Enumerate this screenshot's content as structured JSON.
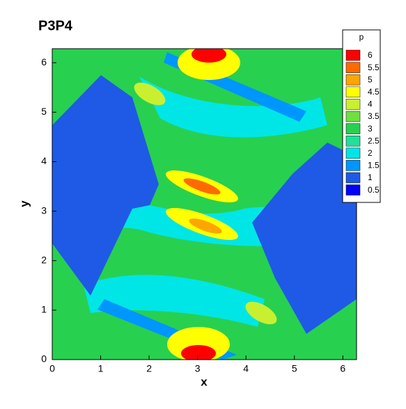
{
  "chart_data": {
    "type": "contour",
    "title": "P3P4",
    "xlabel": "x",
    "ylabel": "y",
    "xlim": [
      0,
      6.2832
    ],
    "ylim": [
      0,
      6.2832
    ],
    "xticks": [
      0,
      1,
      2,
      3,
      4,
      5,
      6
    ],
    "yticks": [
      0,
      1,
      2,
      3,
      4,
      5,
      6
    ],
    "legend_title": "p",
    "levels": [
      6,
      5.5,
      5,
      4.5,
      4,
      3.5,
      3,
      2.5,
      2,
      1.5,
      1,
      0.5
    ],
    "colors": [
      "#ff0000",
      "#ff6a00",
      "#ffa500",
      "#ffff00",
      "#c8f030",
      "#6ee040",
      "#28d050",
      "#20e09a",
      "#00e6e6",
      "#0096ff",
      "#1e5ae6",
      "#0000ff"
    ]
  }
}
